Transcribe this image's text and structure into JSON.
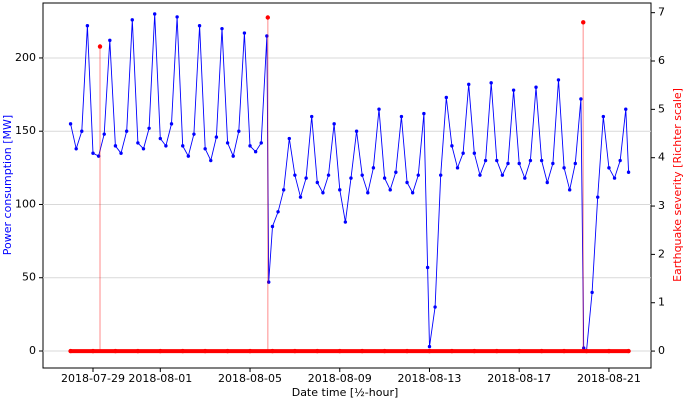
{
  "chart_data": {
    "type": "line",
    "xlabel": "Date time [½-hour]",
    "ylabel": "Power consumption [MW]",
    "y2label": "Earthquake severity [Richter scale]",
    "grid": true,
    "xlim": [
      "2018-07-26 18:30",
      "2018-08-22 21:00"
    ],
    "xticks": [
      "2018-07-29",
      "2018-08-01",
      "2018-08-05",
      "2018-08-09",
      "2018-08-13",
      "2018-08-17",
      "2018-08-21"
    ],
    "ylim": [
      -11.6,
      237.5
    ],
    "yticks": [
      0,
      50,
      100,
      150,
      200
    ],
    "y2lim": [
      -0.35,
      7.2
    ],
    "y2ticks": [
      0,
      1,
      2,
      3,
      4,
      5,
      6,
      7
    ],
    "series": [
      {
        "name": "Power consumption",
        "color": "#0000ff",
        "axis": "y",
        "x": [
          "2018-07-28 00:00",
          "2018-07-28 06:00",
          "2018-07-28 12:00",
          "2018-07-28 18:00",
          "2018-07-29 00:00",
          "2018-07-29 06:00",
          "2018-07-29 12:00",
          "2018-07-29 18:00",
          "2018-07-30 00:00",
          "2018-07-30 06:00",
          "2018-07-30 12:00",
          "2018-07-30 18:00",
          "2018-07-31 00:00",
          "2018-07-31 06:00",
          "2018-07-31 12:00",
          "2018-07-31 18:00",
          "2018-08-01 00:00",
          "2018-08-01 06:00",
          "2018-08-01 12:00",
          "2018-08-01 18:00",
          "2018-08-02 00:00",
          "2018-08-02 06:00",
          "2018-08-02 12:00",
          "2018-08-02 18:00",
          "2018-08-03 00:00",
          "2018-08-03 06:00",
          "2018-08-03 12:00",
          "2018-08-03 18:00",
          "2018-08-04 00:00",
          "2018-08-04 06:00",
          "2018-08-04 12:00",
          "2018-08-04 18:00",
          "2018-08-05 00:00",
          "2018-08-05 06:00",
          "2018-08-05 12:00",
          "2018-08-05 18:00",
          "2018-08-05 20:00",
          "2018-08-06 00:00",
          "2018-08-06 06:00",
          "2018-08-06 12:00",
          "2018-08-06 18:00",
          "2018-08-07 00:00",
          "2018-08-07 06:00",
          "2018-08-07 12:00",
          "2018-08-07 18:00",
          "2018-08-08 00:00",
          "2018-08-08 06:00",
          "2018-08-08 12:00",
          "2018-08-08 18:00",
          "2018-08-09 00:00",
          "2018-08-09 06:00",
          "2018-08-09 12:00",
          "2018-08-09 18:00",
          "2018-08-10 00:00",
          "2018-08-10 06:00",
          "2018-08-10 12:00",
          "2018-08-10 18:00",
          "2018-08-11 00:00",
          "2018-08-11 06:00",
          "2018-08-11 12:00",
          "2018-08-11 18:00",
          "2018-08-12 00:00",
          "2018-08-12 06:00",
          "2018-08-12 12:00",
          "2018-08-12 18:00",
          "2018-08-12 22:00",
          "2018-08-13 00:00",
          "2018-08-13 06:00",
          "2018-08-13 12:00",
          "2018-08-13 18:00",
          "2018-08-14 00:00",
          "2018-08-14 06:00",
          "2018-08-14 12:00",
          "2018-08-14 18:00",
          "2018-08-15 00:00",
          "2018-08-15 06:00",
          "2018-08-15 12:00",
          "2018-08-15 18:00",
          "2018-08-16 00:00",
          "2018-08-16 06:00",
          "2018-08-16 12:00",
          "2018-08-16 18:00",
          "2018-08-17 00:00",
          "2018-08-17 06:00",
          "2018-08-17 12:00",
          "2018-08-17 18:00",
          "2018-08-18 00:00",
          "2018-08-18 06:00",
          "2018-08-18 12:00",
          "2018-08-18 18:00",
          "2018-08-19 00:00",
          "2018-08-19 06:00",
          "2018-08-19 12:00",
          "2018-08-19 18:00",
          "2018-08-19 21:00",
          "2018-08-20 00:00",
          "2018-08-20 06:00",
          "2018-08-20 12:00",
          "2018-08-20 18:00",
          "2018-08-21 00:00",
          "2018-08-21 06:00",
          "2018-08-21 12:00",
          "2018-08-21 18:00",
          "2018-08-21 21:00"
        ],
        "values": [
          155,
          138,
          150,
          222,
          135,
          133,
          148,
          212,
          140,
          135,
          150,
          226,
          142,
          138,
          152,
          230,
          145,
          140,
          155,
          228,
          140,
          133,
          148,
          222,
          138,
          130,
          146,
          220,
          142,
          133,
          150,
          217,
          140,
          136,
          142,
          215,
          47,
          85,
          95,
          110,
          145,
          120,
          105,
          118,
          160,
          115,
          108,
          120,
          155,
          110,
          88,
          118,
          150,
          120,
          108,
          125,
          165,
          118,
          110,
          122,
          160,
          115,
          108,
          120,
          162,
          57,
          3,
          30,
          120,
          173,
          140,
          125,
          135,
          182,
          135,
          120,
          130,
          183,
          130,
          120,
          128,
          178,
          128,
          118,
          130,
          180,
          130,
          115,
          128,
          185,
          125,
          110,
          128,
          172,
          2,
          0,
          40,
          105,
          160,
          125,
          118,
          130,
          165,
          122
        ]
      },
      {
        "name": "Earthquake severity",
        "color": "#ff0000",
        "axis": "y2",
        "x": [
          "2018-07-28 00:00",
          "2018-07-29 00:00",
          "2018-07-29 07:30",
          "2018-07-30 00:00",
          "2018-07-31 00:00",
          "2018-08-01 00:00",
          "2018-08-02 00:00",
          "2018-08-03 00:00",
          "2018-08-04 00:00",
          "2018-08-05 00:00",
          "2018-08-05 19:00",
          "2018-08-06 00:00",
          "2018-08-07 00:00",
          "2018-08-08 00:00",
          "2018-08-09 00:00",
          "2018-08-10 00:00",
          "2018-08-11 00:00",
          "2018-08-12 00:00",
          "2018-08-13 00:00",
          "2018-08-14 00:00",
          "2018-08-15 00:00",
          "2018-08-16 00:00",
          "2018-08-17 00:00",
          "2018-08-18 00:00",
          "2018-08-19 00:00",
          "2018-08-19 20:30",
          "2018-08-20 00:00",
          "2018-08-21 00:00",
          "2018-08-21 21:00"
        ],
        "values": [
          0,
          0,
          6.3,
          0,
          0,
          0,
          0,
          0,
          0,
          0,
          6.9,
          0,
          0,
          0,
          0,
          0,
          0,
          0,
          0,
          0,
          0,
          0,
          0,
          0,
          0,
          6.8,
          0,
          0,
          0
        ]
      }
    ]
  }
}
